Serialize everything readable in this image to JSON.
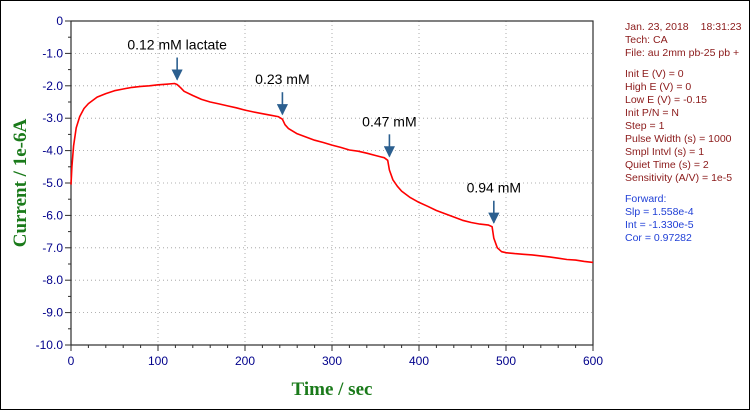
{
  "chart_data": {
    "type": "line",
    "xlabel": "Time / sec",
    "ylabel": "Current / 1e-6A",
    "xlim": [
      0,
      600
    ],
    "ylim": [
      -10.0,
      0
    ],
    "grid": true,
    "x_ticks": [
      0,
      100,
      200,
      300,
      400,
      500,
      600
    ],
    "y_ticks": [
      "0",
      "-1.0",
      "-2.0",
      "-3.0",
      "-4.0",
      "-5.0",
      "-6.0",
      "-7.0",
      "-8.0",
      "-9.0",
      "-10.0"
    ],
    "series": [
      {
        "color": "#ff0000",
        "points": [
          [
            0,
            -5.05
          ],
          [
            1,
            -4.5
          ],
          [
            3,
            -3.85
          ],
          [
            6,
            -3.3
          ],
          [
            10,
            -2.95
          ],
          [
            15,
            -2.7
          ],
          [
            20,
            -2.55
          ],
          [
            30,
            -2.35
          ],
          [
            40,
            -2.24
          ],
          [
            50,
            -2.15
          ],
          [
            60,
            -2.1
          ],
          [
            70,
            -2.05
          ],
          [
            80,
            -2.02
          ],
          [
            90,
            -2.0
          ],
          [
            100,
            -1.97
          ],
          [
            110,
            -1.95
          ],
          [
            119,
            -1.93
          ],
          [
            122,
            -1.96
          ],
          [
            126,
            -2.06
          ],
          [
            130,
            -2.17
          ],
          [
            140,
            -2.3
          ],
          [
            150,
            -2.42
          ],
          [
            160,
            -2.5
          ],
          [
            170,
            -2.56
          ],
          [
            180,
            -2.62
          ],
          [
            190,
            -2.68
          ],
          [
            200,
            -2.75
          ],
          [
            210,
            -2.81
          ],
          [
            220,
            -2.86
          ],
          [
            230,
            -2.91
          ],
          [
            238,
            -2.95
          ],
          [
            243,
            -3.03
          ],
          [
            246,
            -3.2
          ],
          [
            250,
            -3.32
          ],
          [
            260,
            -3.48
          ],
          [
            270,
            -3.58
          ],
          [
            280,
            -3.68
          ],
          [
            290,
            -3.75
          ],
          [
            300,
            -3.83
          ],
          [
            310,
            -3.9
          ],
          [
            320,
            -3.98
          ],
          [
            330,
            -4.02
          ],
          [
            340,
            -4.08
          ],
          [
            350,
            -4.15
          ],
          [
            360,
            -4.22
          ],
          [
            364,
            -4.3
          ],
          [
            366,
            -4.6
          ],
          [
            370,
            -4.9
          ],
          [
            375,
            -5.1
          ],
          [
            380,
            -5.25
          ],
          [
            390,
            -5.45
          ],
          [
            400,
            -5.6
          ],
          [
            410,
            -5.72
          ],
          [
            420,
            -5.85
          ],
          [
            430,
            -5.95
          ],
          [
            440,
            -6.05
          ],
          [
            450,
            -6.15
          ],
          [
            460,
            -6.22
          ],
          [
            470,
            -6.27
          ],
          [
            480,
            -6.3
          ],
          [
            484,
            -6.35
          ],
          [
            486,
            -6.7
          ],
          [
            490,
            -7.0
          ],
          [
            495,
            -7.12
          ],
          [
            500,
            -7.15
          ],
          [
            510,
            -7.18
          ],
          [
            520,
            -7.2
          ],
          [
            530,
            -7.22
          ],
          [
            540,
            -7.25
          ],
          [
            550,
            -7.28
          ],
          [
            560,
            -7.32
          ],
          [
            570,
            -7.36
          ],
          [
            580,
            -7.38
          ],
          [
            590,
            -7.42
          ],
          [
            600,
            -7.45
          ]
        ]
      }
    ],
    "annotations": [
      {
        "text": "0.12 mM lactate",
        "x": 122,
        "y": -1.93
      },
      {
        "text": "0.23 mM",
        "x": 243,
        "y": -3.0
      },
      {
        "text": "0.47 mM",
        "x": 366,
        "y": -4.3
      },
      {
        "text": "0.94 mM",
        "x": 486,
        "y": -6.35
      }
    ]
  },
  "info_panel": {
    "date": "Jan. 23, 2018",
    "time": "18:31:23",
    "tech": "Tech: CA",
    "file": "File: au 2mm pb-25 pb +",
    "params": [
      "Init E (V) = 0",
      "High E (V) = 0",
      "Low E (V) = -0.15",
      "Init P/N = N",
      "Step = 1",
      "Pulse Width (s) = 1000",
      "Smpl Intvl (s) = 1",
      "Quiet Time (s) = 2",
      "Sensitivity (A/V) = 1e-5"
    ],
    "fit": [
      "Forward:",
      "Slp = 1.558e-4",
      "Int = -1.330e-5",
      "Cor = 0.97282"
    ]
  }
}
